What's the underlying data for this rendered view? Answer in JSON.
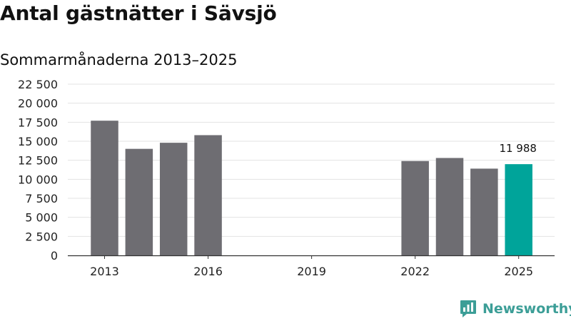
{
  "title": "Antal gästnätter i Sävsjö",
  "subtitle": "Sommarmånaderna 2013–2025",
  "brand": {
    "name": "Newsworthy",
    "color": "#3c9e97",
    "icon": "newsworthy-logo-icon"
  },
  "colors": {
    "bar": "#6e6d72",
    "highlight": "#00a49a",
    "grid": "#e3e3e3",
    "axis": "#333333"
  },
  "chart_data": {
    "type": "bar",
    "categories": [
      "2013",
      "2014",
      "2015",
      "2016",
      "2017",
      "2018",
      "2019",
      "2020",
      "2021",
      "2022",
      "2023",
      "2024",
      "2025"
    ],
    "values": [
      17700,
      14000,
      14800,
      15800,
      null,
      null,
      null,
      null,
      null,
      12400,
      12800,
      11400,
      11988
    ],
    "x_tick_labels": [
      "2013",
      "2016",
      "2019",
      "2022",
      "2025"
    ],
    "y_ticks": [
      "0",
      "2 500",
      "5 000",
      "7 500",
      "10 000",
      "12 500",
      "15 000",
      "17 500",
      "20 000",
      "22 500"
    ],
    "ylim": [
      0,
      22500
    ],
    "highlight_category": "2025",
    "annotation": {
      "category": "2025",
      "text": "11 988"
    },
    "grid": true,
    "legend": "none"
  }
}
